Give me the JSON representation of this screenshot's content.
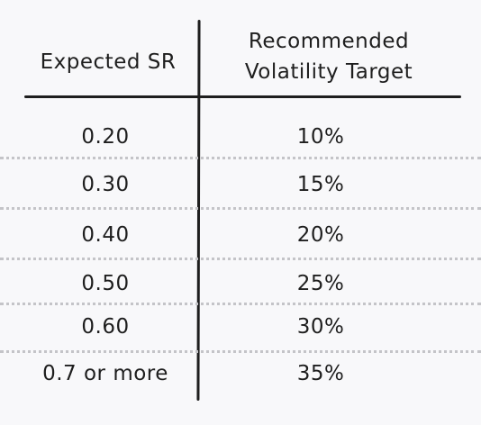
{
  "table": {
    "headers": {
      "left": "Expected SR",
      "right_line1": "Recommended",
      "right_line2": "Volatility Target"
    },
    "rows": [
      {
        "sr": "0.20",
        "vol": "10%"
      },
      {
        "sr": "0.30",
        "vol": "15%"
      },
      {
        "sr": "0.40",
        "vol": "20%"
      },
      {
        "sr": "0.50",
        "vol": "25%"
      },
      {
        "sr": "0.60",
        "vol": "30%"
      },
      {
        "sr": "0.7 or more",
        "vol": "35%"
      }
    ]
  }
}
